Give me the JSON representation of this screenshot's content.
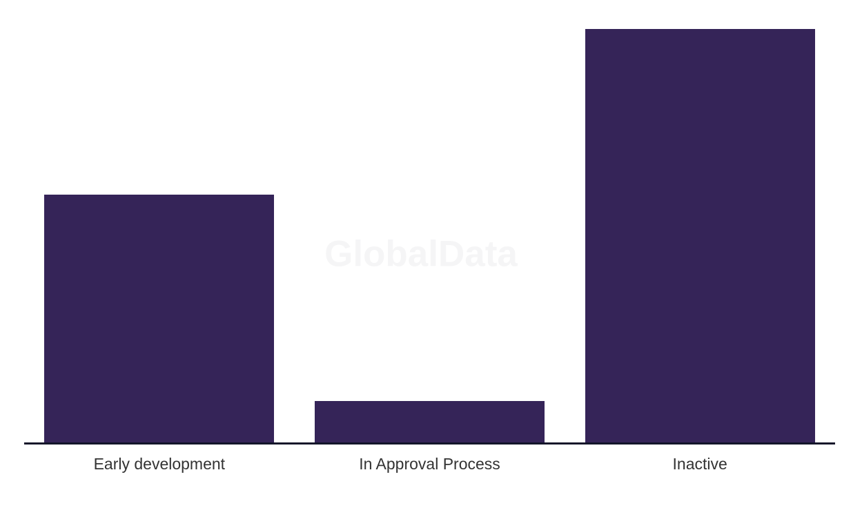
{
  "chart_data": {
    "type": "bar",
    "title": "",
    "xlabel": "",
    "ylabel": "",
    "categories": [
      "Early development",
      "In Approval Process",
      "Inactive"
    ],
    "values": [
      6,
      1,
      10
    ],
    "ylim": [
      0,
      10
    ],
    "grid": false,
    "legend": false,
    "colors": {
      "bar": "#352458",
      "axis_line": "#14162a",
      "label_text": "#333333",
      "background": "#ffffff"
    }
  },
  "watermark": {
    "text": "GlobalData",
    "color": "#f5f5f6"
  }
}
